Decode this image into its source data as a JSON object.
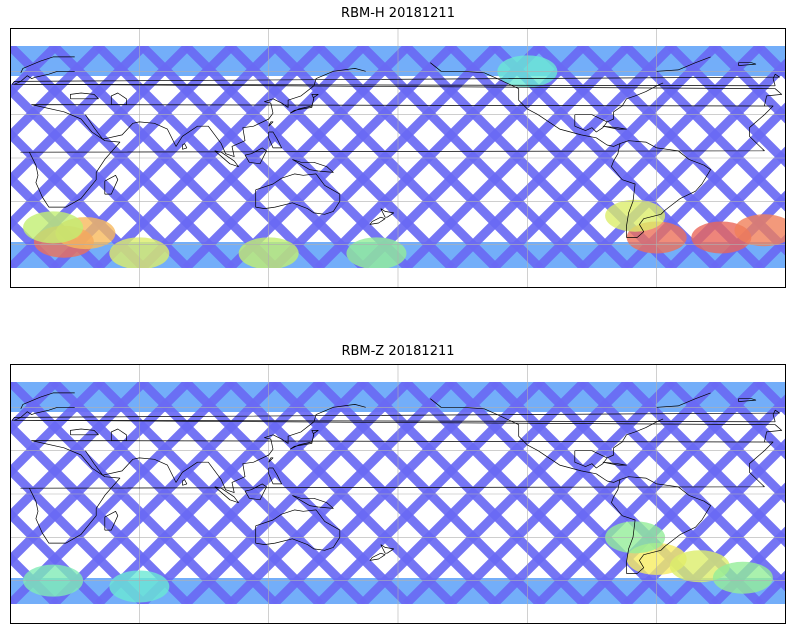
{
  "panels": [
    {
      "title": "RBM-H 20181211",
      "heat": [
        {
          "lon": 25,
          "lat": -58,
          "level": 0.95
        },
        {
          "lon": 35,
          "lat": -52,
          "level": 0.75
        },
        {
          "lon": 20,
          "lat": -48,
          "level": 0.55
        },
        {
          "lon": 60,
          "lat": -66,
          "level": 0.6
        },
        {
          "lon": 120,
          "lat": -66,
          "level": 0.55
        },
        {
          "lon": 170,
          "lat": -66,
          "level": 0.45
        },
        {
          "lon": 300,
          "lat": -55,
          "level": 0.95
        },
        {
          "lon": 330,
          "lat": -55,
          "level": 0.98
        },
        {
          "lon": 350,
          "lat": -50,
          "level": 0.9
        },
        {
          "lon": 290,
          "lat": -40,
          "level": 0.6
        },
        {
          "lon": 240,
          "lat": 60,
          "level": 0.35
        }
      ]
    },
    {
      "title": "RBM-Z 20181211",
      "heat": [
        {
          "lon": 20,
          "lat": -60,
          "level": 0.4
        },
        {
          "lon": 60,
          "lat": -64,
          "level": 0.35
        },
        {
          "lon": 300,
          "lat": -45,
          "level": 0.65
        },
        {
          "lon": 320,
          "lat": -50,
          "level": 0.6
        },
        {
          "lon": 340,
          "lat": -58,
          "level": 0.45
        },
        {
          "lon": 290,
          "lat": -30,
          "level": 0.45
        }
      ]
    }
  ],
  "colors": {
    "track": "#6a6af4",
    "low": "#5aa0f8",
    "cyan": "#55e6f2",
    "green": "#a8f07a",
    "yellow": "#f6ec62",
    "orange": "#f8a05a",
    "red": "#e8605a",
    "coast": "#000000",
    "grid": "#b0b0b0",
    "frame": "#000000"
  }
}
